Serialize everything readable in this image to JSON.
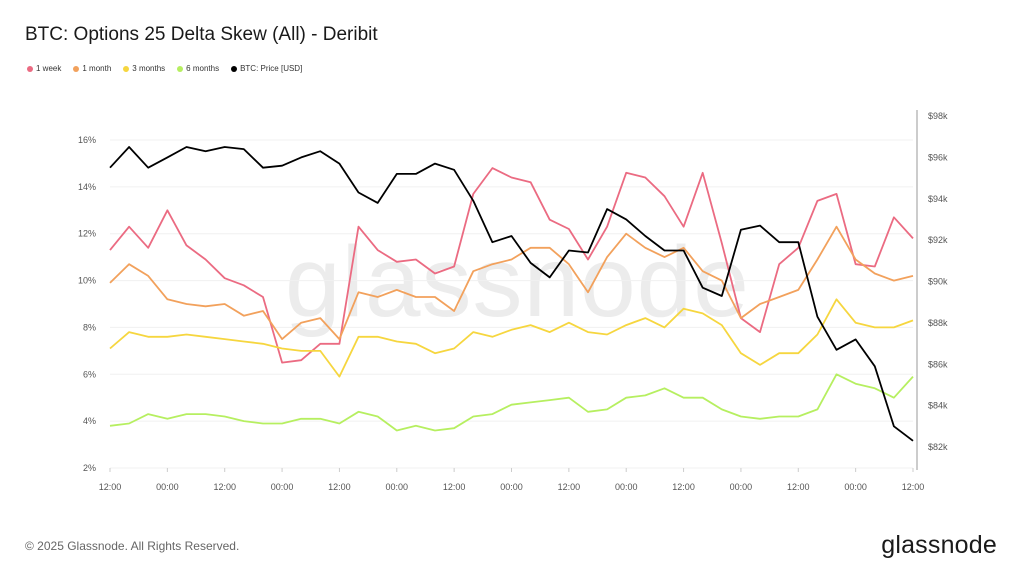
{
  "chart_data": {
    "type": "line",
    "title": "BTC: Options 25 Delta Skew (All) - Deribit",
    "legend_position": "top-left",
    "grid": true,
    "x": [
      "12:00",
      "16:00",
      "20:00",
      "00:00",
      "04:00",
      "08:00",
      "12:00",
      "16:00",
      "20:00",
      "00:00",
      "04:00",
      "08:00",
      "12:00",
      "16:00",
      "20:00",
      "00:00",
      "04:00",
      "08:00",
      "12:00",
      "16:00",
      "20:00",
      "00:00",
      "04:00",
      "08:00",
      "12:00",
      "16:00",
      "20:00",
      "00:00",
      "04:00",
      "08:00",
      "12:00",
      "16:00",
      "20:00",
      "00:00",
      "04:00",
      "08:00",
      "12:00",
      "16:00",
      "20:00",
      "00:00",
      "04:00",
      "08:00",
      "12:00"
    ],
    "x_ticks": [
      "12:00",
      "00:00",
      "12:00",
      "00:00",
      "12:00",
      "00:00",
      "12:00",
      "00:00",
      "12:00",
      "00:00",
      "12:00",
      "00:00",
      "12:00",
      "00:00",
      "12:00"
    ],
    "y_left": {
      "ticks": [
        "2%",
        "4%",
        "6%",
        "8%",
        "10%",
        "12%",
        "14%",
        "16%"
      ],
      "range": [
        2,
        16
      ]
    },
    "y_right": {
      "ticks": [
        "$82k",
        "$84k",
        "$86k",
        "$88k",
        "$90k",
        "$92k",
        "$94k",
        "$96k",
        "$98k"
      ],
      "range": [
        82,
        98
      ]
    },
    "series": [
      {
        "name": "1 week",
        "color": "#eb6b82",
        "axis": "left",
        "values": [
          11.3,
          12.3,
          11.4,
          13.0,
          11.5,
          10.9,
          10.1,
          9.8,
          9.3,
          6.5,
          6.6,
          7.3,
          7.3,
          12.3,
          11.3,
          10.8,
          10.9,
          10.3,
          10.6,
          13.7,
          14.8,
          14.4,
          14.2,
          12.6,
          12.2,
          10.9,
          12.3,
          14.6,
          14.4,
          13.6,
          12.3,
          14.6,
          11.6,
          8.4,
          7.8,
          10.7,
          11.4,
          13.4,
          13.7,
          10.7,
          10.6,
          12.7,
          11.8
        ]
      },
      {
        "name": "1 month",
        "color": "#f2a15c",
        "axis": "left",
        "values": [
          9.9,
          10.7,
          10.2,
          9.2,
          9.0,
          8.9,
          9.0,
          8.5,
          8.7,
          7.5,
          8.2,
          8.4,
          7.5,
          9.5,
          9.3,
          9.6,
          9.3,
          9.3,
          8.7,
          10.4,
          10.7,
          10.9,
          11.4,
          11.4,
          10.7,
          9.5,
          11.0,
          12.0,
          11.4,
          11.0,
          11.4,
          10.4,
          10.0,
          8.4,
          9.0,
          9.3,
          9.6,
          10.9,
          12.3,
          10.9,
          10.3,
          10.0,
          10.2
        ]
      },
      {
        "name": "3 months",
        "color": "#f6d63f",
        "axis": "left",
        "values": [
          7.1,
          7.8,
          7.6,
          7.6,
          7.7,
          7.6,
          7.5,
          7.4,
          7.3,
          7.1,
          7.0,
          7.0,
          5.9,
          7.6,
          7.6,
          7.4,
          7.3,
          6.9,
          7.1,
          7.8,
          7.6,
          7.9,
          8.1,
          7.8,
          8.2,
          7.8,
          7.7,
          8.1,
          8.4,
          8.0,
          8.8,
          8.6,
          8.1,
          6.9,
          6.4,
          6.9,
          6.9,
          7.7,
          9.2,
          8.2,
          8.0,
          8.0,
          8.3
        ]
      },
      {
        "name": "6 months",
        "color": "#b6ef60",
        "axis": "left",
        "values": [
          3.8,
          3.9,
          4.3,
          4.1,
          4.3,
          4.3,
          4.2,
          4.0,
          3.9,
          3.9,
          4.1,
          4.1,
          3.9,
          4.4,
          4.2,
          3.6,
          3.8,
          3.6,
          3.7,
          4.2,
          4.3,
          4.7,
          4.8,
          4.9,
          5.0,
          4.4,
          4.5,
          5.0,
          5.1,
          5.4,
          5.0,
          5.0,
          4.5,
          4.2,
          4.1,
          4.2,
          4.2,
          4.5,
          6.0,
          5.6,
          5.4,
          5.0,
          5.9
        ]
      },
      {
        "name": "BTC: Price [USD]",
        "color": "#000000",
        "axis": "right",
        "values": [
          95.5,
          96.5,
          95.5,
          96.0,
          96.5,
          96.3,
          96.5,
          96.4,
          95.5,
          95.6,
          96.0,
          96.3,
          95.7,
          94.3,
          93.8,
          95.2,
          95.2,
          95.7,
          95.4,
          93.9,
          91.9,
          92.2,
          90.9,
          90.2,
          91.5,
          91.4,
          93.5,
          93.0,
          92.2,
          91.5,
          91.5,
          89.7,
          89.3,
          92.5,
          92.7,
          91.9,
          91.9,
          88.3,
          86.7,
          87.2,
          85.9,
          83.0,
          82.3
        ]
      }
    ]
  },
  "watermark": "glassnode",
  "footer": {
    "copyright": "© 2025 Glassnode. All Rights Reserved.",
    "logo": "glassnode"
  }
}
